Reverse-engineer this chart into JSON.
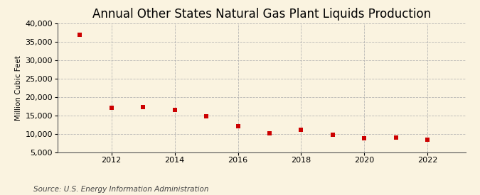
{
  "title": "Annual Other States Natural Gas Plant Liquids Production",
  "ylabel": "Million Cubic Feet",
  "source": "Source: U.S. Energy Information Administration",
  "background_color": "#faf3e0",
  "years": [
    2011,
    2012,
    2013,
    2014,
    2015,
    2016,
    2017,
    2018,
    2019,
    2020,
    2021,
    2022
  ],
  "values": [
    37000,
    17000,
    17200,
    16500,
    14800,
    12000,
    10100,
    11000,
    9700,
    8700,
    9000,
    8300
  ],
  "marker_color": "#cc0000",
  "marker_size": 18,
  "ylim": [
    5000,
    40000
  ],
  "yticks": [
    5000,
    10000,
    15000,
    20000,
    25000,
    30000,
    35000,
    40000
  ],
  "xticks": [
    2012,
    2014,
    2016,
    2018,
    2020,
    2022
  ],
  "xlim": [
    2010.3,
    2023.2
  ],
  "grid_color": "#b0b0b0",
  "title_fontsize": 12,
  "label_fontsize": 7.5,
  "tick_fontsize": 8,
  "source_fontsize": 7.5
}
